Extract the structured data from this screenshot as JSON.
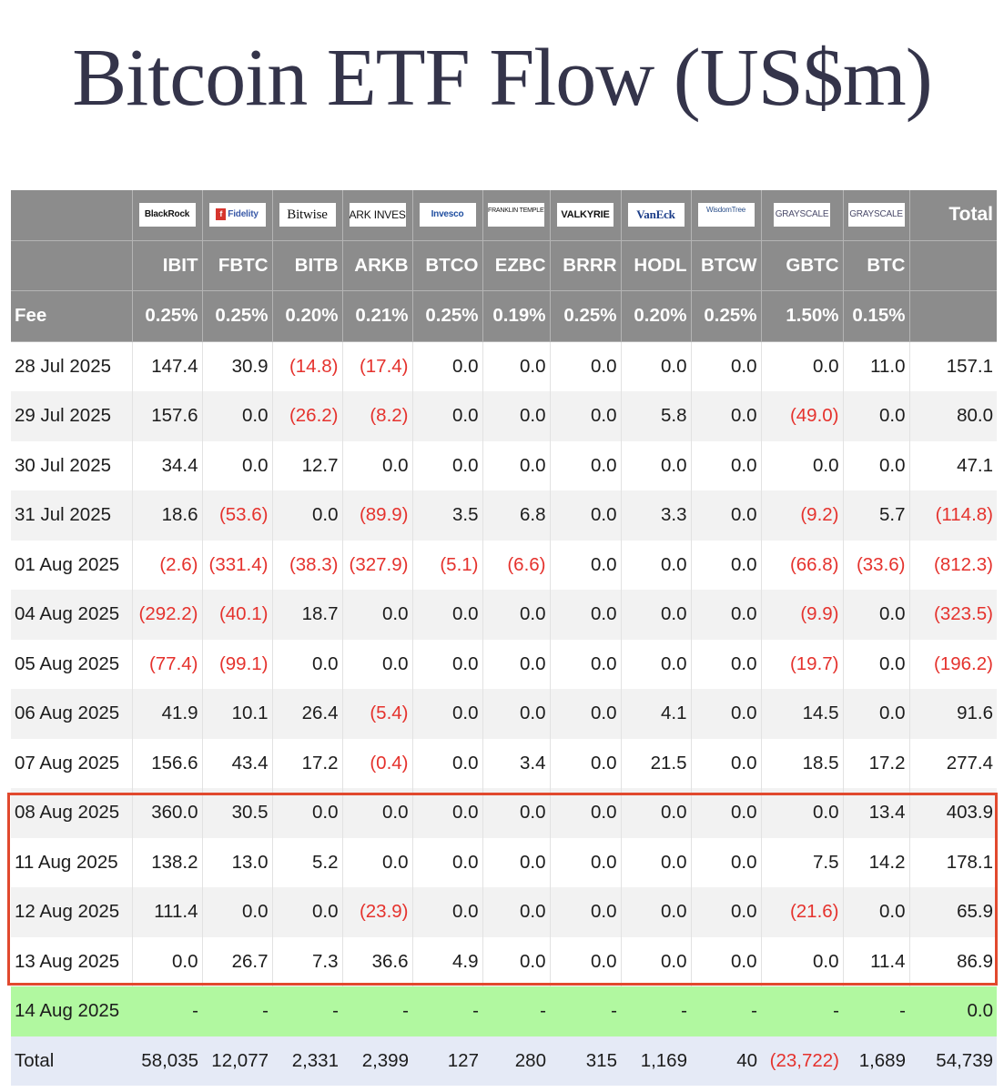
{
  "title": "Bitcoin ETF Flow (US$m)",
  "chart_data": {
    "type": "table",
    "title": "Bitcoin ETF Flow (US$m)",
    "issuers": [
      "BlackRock",
      "Fidelity",
      "Bitwise",
      "ARK INVEST",
      "Invesco",
      "FRANKLIN TEMPLETON",
      "VALKYRIE",
      "VanEck",
      "WisdomTree",
      "GRAYSCALE",
      "GRAYSCALE"
    ],
    "tickers": [
      "IBIT",
      "FBTC",
      "BITB",
      "ARKB",
      "BTCO",
      "EZBC",
      "BRRR",
      "HODL",
      "BTCW",
      "GBTC",
      "BTC"
    ],
    "total_header": "Total",
    "fee_label": "Fee",
    "fees": [
      "0.25%",
      "0.25%",
      "0.20%",
      "0.21%",
      "0.25%",
      "0.19%",
      "0.25%",
      "0.20%",
      "0.25%",
      "1.50%",
      "0.15%"
    ],
    "rows": [
      {
        "date": "28 Jul 2025",
        "values": [
          "147.4",
          "30.9",
          "(14.8)",
          "(17.4)",
          "0.0",
          "0.0",
          "0.0",
          "0.0",
          "0.0",
          "0.0",
          "11.0"
        ],
        "total": "157.1"
      },
      {
        "date": "29 Jul 2025",
        "values": [
          "157.6",
          "0.0",
          "(26.2)",
          "(8.2)",
          "0.0",
          "0.0",
          "0.0",
          "5.8",
          "0.0",
          "(49.0)",
          "0.0"
        ],
        "total": "80.0"
      },
      {
        "date": "30 Jul 2025",
        "values": [
          "34.4",
          "0.0",
          "12.7",
          "0.0",
          "0.0",
          "0.0",
          "0.0",
          "0.0",
          "0.0",
          "0.0",
          "0.0"
        ],
        "total": "47.1"
      },
      {
        "date": "31 Jul 2025",
        "values": [
          "18.6",
          "(53.6)",
          "0.0",
          "(89.9)",
          "3.5",
          "6.8",
          "0.0",
          "3.3",
          "0.0",
          "(9.2)",
          "5.7"
        ],
        "total": "(114.8)"
      },
      {
        "date": "01 Aug 2025",
        "values": [
          "(2.6)",
          "(331.4)",
          "(38.3)",
          "(327.9)",
          "(5.1)",
          "(6.6)",
          "0.0",
          "0.0",
          "0.0",
          "(66.8)",
          "(33.6)"
        ],
        "total": "(812.3)"
      },
      {
        "date": "04 Aug 2025",
        "values": [
          "(292.2)",
          "(40.1)",
          "18.7",
          "0.0",
          "0.0",
          "0.0",
          "0.0",
          "0.0",
          "0.0",
          "(9.9)",
          "0.0"
        ],
        "total": "(323.5)"
      },
      {
        "date": "05 Aug 2025",
        "values": [
          "(77.4)",
          "(99.1)",
          "0.0",
          "0.0",
          "0.0",
          "0.0",
          "0.0",
          "0.0",
          "0.0",
          "(19.7)",
          "0.0"
        ],
        "total": "(196.2)"
      },
      {
        "date": "06 Aug 2025",
        "values": [
          "41.9",
          "10.1",
          "26.4",
          "(5.4)",
          "0.0",
          "0.0",
          "0.0",
          "4.1",
          "0.0",
          "14.5",
          "0.0"
        ],
        "total": "91.6"
      },
      {
        "date": "07 Aug 2025",
        "values": [
          "156.6",
          "43.4",
          "17.2",
          "(0.4)",
          "0.0",
          "3.4",
          "0.0",
          "21.5",
          "0.0",
          "18.5",
          "17.2"
        ],
        "total": "277.4"
      },
      {
        "date": "08 Aug 2025",
        "values": [
          "360.0",
          "30.5",
          "0.0",
          "0.0",
          "0.0",
          "0.0",
          "0.0",
          "0.0",
          "0.0",
          "0.0",
          "13.4"
        ],
        "total": "403.9"
      },
      {
        "date": "11 Aug 2025",
        "values": [
          "138.2",
          "13.0",
          "5.2",
          "0.0",
          "0.0",
          "0.0",
          "0.0",
          "0.0",
          "0.0",
          "7.5",
          "14.2"
        ],
        "total": "178.1"
      },
      {
        "date": "12 Aug 2025",
        "values": [
          "111.4",
          "0.0",
          "0.0",
          "(23.9)",
          "0.0",
          "0.0",
          "0.0",
          "0.0",
          "0.0",
          "(21.6)",
          "0.0"
        ],
        "total": "65.9"
      },
      {
        "date": "13 Aug 2025",
        "values": [
          "0.0",
          "26.7",
          "7.3",
          "36.6",
          "4.9",
          "0.0",
          "0.0",
          "0.0",
          "0.0",
          "0.0",
          "11.4"
        ],
        "total": "86.9"
      }
    ],
    "pending_row": {
      "date": "14 Aug 2025",
      "values": [
        "-",
        "-",
        "-",
        "-",
        "-",
        "-",
        "-",
        "-",
        "-",
        "-",
        "-"
      ],
      "total": "0.0"
    },
    "total_row": {
      "label": "Total",
      "values": [
        "58,035",
        "12,077",
        "2,331",
        "2,399",
        "127",
        "280",
        "315",
        "1,169",
        "40",
        "(23,722)",
        "1,689"
      ],
      "total": "54,739"
    },
    "highlighted_dates": [
      "08 Aug 2025",
      "11 Aug 2025",
      "12 Aug 2025",
      "13 Aug 2025"
    ],
    "colors": {
      "header_bg": "#8c8c8c",
      "negative": "#e5322d",
      "pending_row_bg": "#b1f8a0",
      "total_row_bg": "#e5eaf6",
      "highlight_border": "#e1492e",
      "title": "#34344a"
    }
  }
}
